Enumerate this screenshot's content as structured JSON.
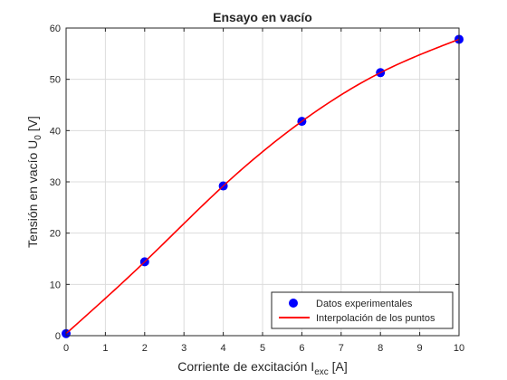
{
  "chart_data": {
    "type": "scatter",
    "title": "Ensayo en vacío",
    "xlabel": {
      "main": "Corriente de excitación I",
      "sub": "exc",
      "unit": " [A]"
    },
    "ylabel": {
      "main": "Tensión en vacío U",
      "sub": "0",
      "unit": " [V]"
    },
    "xlim": [
      0,
      10
    ],
    "ylim": [
      0,
      60
    ],
    "x_ticks": [
      0,
      1,
      2,
      3,
      4,
      5,
      6,
      7,
      8,
      9,
      10
    ],
    "y_ticks": [
      0,
      10,
      20,
      30,
      40,
      50,
      60
    ],
    "grid": true,
    "legend_position": "bottom-right",
    "series": [
      {
        "name": "Datos experimentales",
        "kind": "markers",
        "color": "#0000ff",
        "x": [
          0,
          2,
          4,
          6,
          8,
          10
        ],
        "y": [
          0.4,
          14.4,
          29.2,
          41.8,
          51.3,
          57.8
        ]
      },
      {
        "name": "Interpolación de los puntos",
        "kind": "line",
        "color": "#ff0000",
        "x": [
          0,
          2,
          4,
          6,
          8,
          10
        ],
        "y": [
          0.4,
          14.4,
          29.2,
          41.8,
          51.3,
          57.8
        ]
      }
    ]
  }
}
